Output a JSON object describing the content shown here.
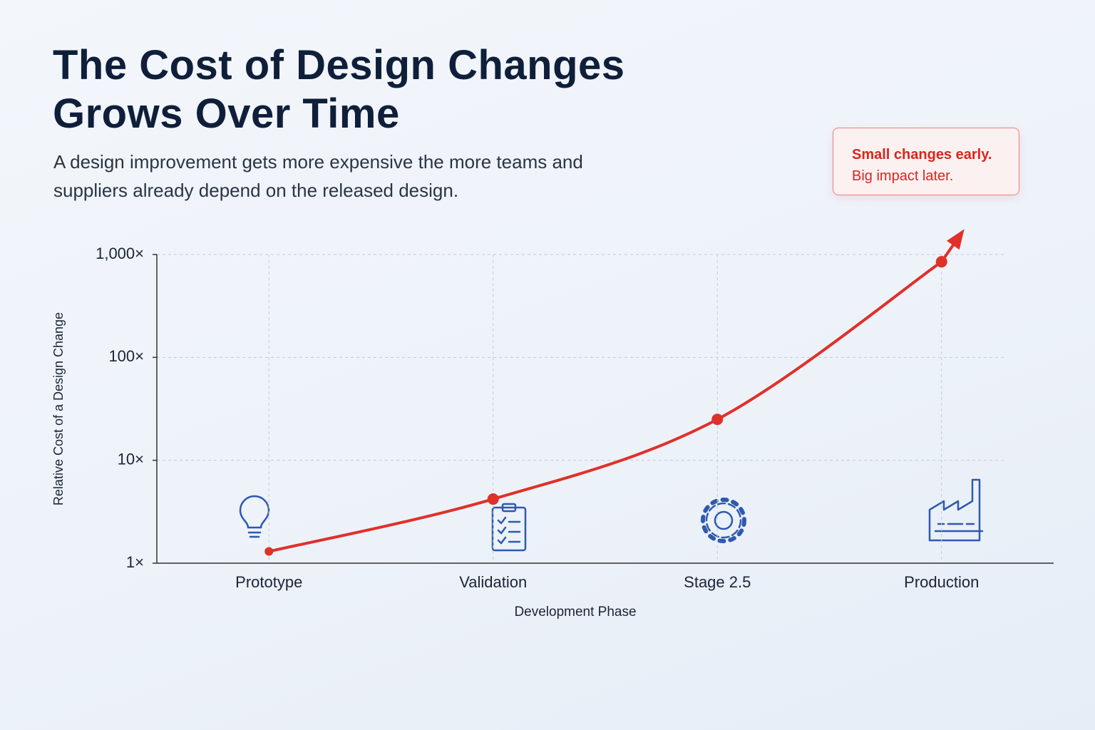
{
  "chart_data": {
    "type": "line",
    "title": "The Cost of Design Changes Grows Over Time",
    "subtitle": "A design improvement gets more expensive the more teams and suppliers already depend on the released design.",
    "annotations": [
      "Small changes early.",
      "Big impact later."
    ],
    "x_label": "Development Phase",
    "y_label": "Relative Cost of a Design Change",
    "categories": [
      "Prototype",
      "Validation",
      "Stage 2.5",
      "Production"
    ],
    "values": [
      1.3,
      4.2,
      25,
      850
    ],
    "color": "#e0302a",
    "log_scale": true,
    "ylim": [
      1,
      1000
    ],
    "yticks": [
      {
        "value": 1,
        "label": "1×"
      },
      {
        "value": 10,
        "label": "10×"
      },
      {
        "value": 100,
        "label": "100×"
      },
      {
        "value": 1000,
        "label": "1,000×"
      }
    ],
    "grid": true
  }
}
